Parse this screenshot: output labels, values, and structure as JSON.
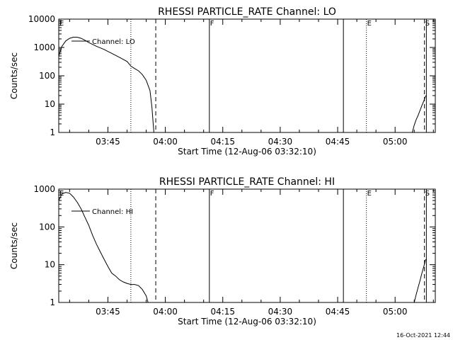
{
  "timestamp": "16-Oct-2021 12:44",
  "chart_data": [
    {
      "type": "line",
      "title": "RHESSI PARTICLE_RATE Channel: LO",
      "xlabel": "Start Time (12-Aug-06 03:32:10)",
      "ylabel": "Counts/sec",
      "yscale": "log",
      "xlim": [
        "03:32:10",
        "05:10:30"
      ],
      "ylim": [
        1,
        10000
      ],
      "x_ticks": [
        "03:45",
        "04:00",
        "04:15",
        "04:30",
        "04:45",
        "05:00"
      ],
      "y_ticks": [
        "1",
        "10",
        "100",
        "1000",
        "10000"
      ],
      "legend": "Channel: LO",
      "legend_position": "top-left",
      "markers": [
        {
          "label": "E",
          "time": "03:32:10",
          "style": "none"
        },
        {
          "label": "",
          "time": "03:51:00",
          "style": "dotted"
        },
        {
          "label": "",
          "time": "03:57:30",
          "style": "dashed"
        },
        {
          "label": "F",
          "time": "04:11:30",
          "style": "solid"
        },
        {
          "label": "",
          "time": "04:46:30",
          "style": "solid"
        },
        {
          "label": "E",
          "time": "04:52:30",
          "style": "dotted"
        },
        {
          "label": "S",
          "time": "05:07:40",
          "style": "dashed"
        },
        {
          "label": "",
          "time": "05:08:10",
          "style": "solid"
        }
      ],
      "segments": [
        {
          "x": [
            "03:32:10",
            "03:33:00",
            "03:34:00",
            "03:35:00",
            "03:36:00",
            "03:37:00",
            "03:38:00",
            "03:39:00",
            "03:40:00",
            "03:42:00",
            "03:44:00",
            "03:46:00",
            "03:48:00",
            "03:50:00",
            "03:51:00",
            "03:52:00",
            "03:53:00",
            "03:54:00",
            "03:55:00",
            "03:56:00",
            "03:56:30",
            "03:57:00"
          ],
          "y": [
            500,
            1100,
            1700,
            2100,
            2300,
            2300,
            2100,
            1800,
            1500,
            1100,
            850,
            620,
            450,
            320,
            220,
            180,
            150,
            110,
            70,
            30,
            8,
            1
          ]
        },
        {
          "x": [
            "05:04:30",
            "05:05:00",
            "05:05:30",
            "05:06:00",
            "05:06:30",
            "05:07:00",
            "05:07:30",
            "05:08:00"
          ],
          "y": [
            1,
            1.8,
            2.8,
            4,
            6,
            9,
            13,
            20
          ]
        }
      ]
    },
    {
      "type": "line",
      "title": "RHESSI PARTICLE_RATE Channel: HI",
      "xlabel": "Start Time (12-Aug-06 03:32:10)",
      "ylabel": "Counts/sec",
      "yscale": "log",
      "xlim": [
        "03:32:10",
        "05:10:30"
      ],
      "ylim": [
        1,
        1000
      ],
      "x_ticks": [
        "03:45",
        "04:00",
        "04:15",
        "04:30",
        "04:45",
        "05:00"
      ],
      "y_ticks": [
        "1",
        "10",
        "100",
        "1000"
      ],
      "legend": "Channel: HI",
      "legend_position": "top-left",
      "markers": [
        {
          "label": "E",
          "time": "03:32:10",
          "style": "none"
        },
        {
          "label": "",
          "time": "03:51:00",
          "style": "dotted"
        },
        {
          "label": "",
          "time": "03:57:30",
          "style": "dashed"
        },
        {
          "label": "F",
          "time": "04:11:30",
          "style": "solid"
        },
        {
          "label": "",
          "time": "04:46:30",
          "style": "solid"
        },
        {
          "label": "E",
          "time": "04:52:30",
          "style": "dotted"
        },
        {
          "label": "S",
          "time": "05:07:40",
          "style": "dashed"
        },
        {
          "label": "",
          "time": "05:08:10",
          "style": "solid"
        }
      ],
      "segments": [
        {
          "x": [
            "03:32:10",
            "03:33:00",
            "03:34:00",
            "03:35:00",
            "03:36:00",
            "03:37:00",
            "03:38:00",
            "03:39:00",
            "03:40:00",
            "03:41:00",
            "03:42:00",
            "03:43:00",
            "03:44:00",
            "03:45:00",
            "03:46:00",
            "03:47:00",
            "03:48:00",
            "03:49:00",
            "03:50:00",
            "03:51:00",
            "03:52:00",
            "03:53:00",
            "03:54:00",
            "03:55:00",
            "03:55:30"
          ],
          "y": [
            500,
            750,
            820,
            780,
            620,
            450,
            300,
            180,
            110,
            60,
            35,
            22,
            14,
            9,
            6,
            5,
            4,
            3.5,
            3.2,
            3,
            3,
            2.8,
            2.2,
            1.5,
            1
          ]
        },
        {
          "x": [
            "05:05:00",
            "05:05:30",
            "05:06:00",
            "05:06:30",
            "05:07:00",
            "05:07:30",
            "05:08:00"
          ],
          "y": [
            1,
            1.6,
            2.5,
            3.8,
            6,
            9,
            14
          ]
        }
      ]
    }
  ]
}
